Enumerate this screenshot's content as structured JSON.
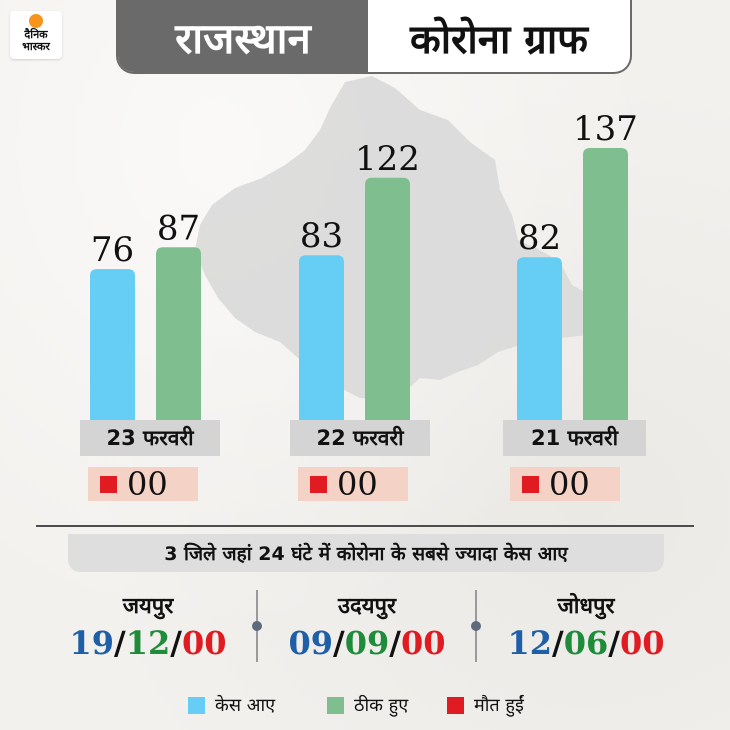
{
  "logo": {
    "line1": "दैनिक",
    "line2": "भास्कर"
  },
  "title": {
    "left": "राजस्थान",
    "right": "कोरोना ग्राफ"
  },
  "colors": {
    "cases": "#66cdf5",
    "recovered": "#7fbf8f",
    "deaths": "#e01b22",
    "title_bg": "#6a6a6a"
  },
  "chart_data": {
    "type": "bar",
    "categories": [
      "23 फरवरी",
      "22 फरवरी",
      "21 फरवरी"
    ],
    "series": [
      {
        "name": "केस आए",
        "values": [
          76,
          83,
          82
        ]
      },
      {
        "name": "ठीक हुए",
        "values": [
          87,
          122,
          137
        ]
      },
      {
        "name": "मौत हुईं",
        "values": [
          0,
          0,
          0
        ]
      }
    ],
    "value_labels": {
      "cases": [
        "76",
        "83",
        "82"
      ],
      "recovered": [
        "87",
        "122",
        "137"
      ],
      "deaths": [
        "00",
        "00",
        "00"
      ]
    },
    "title": "कोरोना ग्राफ",
    "xlabel": "",
    "ylabel": "",
    "ylim": [
      0,
      150
    ],
    "grid": false,
    "legend": "bottom"
  },
  "subtitle": "3 जिले जहां 24 घंटे में कोरोना के सबसे ज्यादा केस आए",
  "districts": [
    {
      "name": "जयपुर",
      "cases": "19",
      "recovered": "12",
      "deaths": "00"
    },
    {
      "name": "उदयपुर",
      "cases": "09",
      "recovered": "09",
      "deaths": "00"
    },
    {
      "name": "जोधपुर",
      "cases": "12",
      "recovered": "06",
      "deaths": "00"
    }
  ],
  "stat_separator": "/",
  "legend": {
    "cases": "केस आए",
    "recovered": "ठीक हुए",
    "deaths": "मौत हुईं"
  }
}
